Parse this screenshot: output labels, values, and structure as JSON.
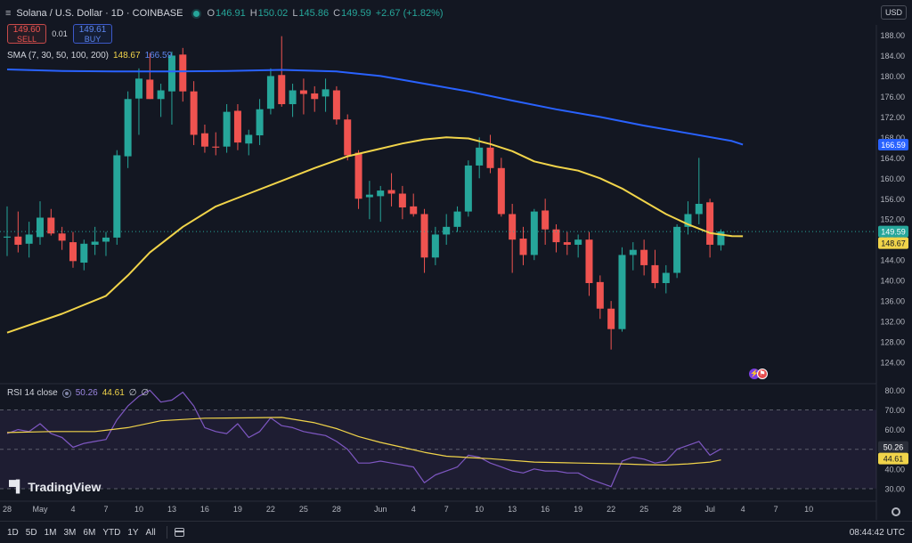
{
  "header": {
    "menu_icon": "hamburger-icon",
    "symbol": "Solana / U.S. Dollar · 1D · COINBASE",
    "status_color": "#26a69a",
    "o_label": "O",
    "o_value": "146.91",
    "h_label": "H",
    "h_value": "150.02",
    "l_label": "L",
    "l_value": "145.86",
    "c_label": "C",
    "c_value": "149.59",
    "change": "+2.67 (+1.82%)"
  },
  "trade": {
    "sell_price": "149.60",
    "sell_label": "SELL",
    "spread": "0.01",
    "buy_price": "149.61",
    "buy_label": "BUY"
  },
  "currency": "USD",
  "sma_legend": {
    "label": "SMA (7, 30, 50, 100, 200)",
    "value1": "148.67",
    "value2": "166.59"
  },
  "rsi_legend": {
    "label": "RSI 14 close",
    "value1": "50.26",
    "value2": "44.61",
    "extra1": "∅",
    "extra2": "∅"
  },
  "logo_text": "TradingView",
  "bottom": {
    "ranges": [
      "1D",
      "5D",
      "1M",
      "3M",
      "6M",
      "YTD",
      "1Y",
      "All"
    ],
    "clock": "08:44:42 UTC"
  },
  "colors": {
    "up": "#26a69a",
    "down": "#ef5350",
    "sma_fast": "#f1d44a",
    "sma_slow": "#2962ff",
    "rsi": "#7e57c2",
    "rsi_ma": "#f1d44a"
  },
  "chart_data": {
    "type": "candlestick",
    "price_axis": {
      "ylim": [
        120,
        190
      ],
      "ticks": [
        124,
        128,
        132,
        136,
        140,
        144,
        148,
        152,
        156,
        160,
        164,
        168,
        172,
        176,
        180,
        184,
        188
      ]
    },
    "current_price": "149.59",
    "sma_fast_last": "148.67",
    "sma_slow_last": "166.59",
    "x_tick_labels": [
      {
        "i": 0,
        "label": "28"
      },
      {
        "i": 3,
        "label": "May"
      },
      {
        "i": 6,
        "label": "4"
      },
      {
        "i": 9,
        "label": "7"
      },
      {
        "i": 12,
        "label": "10"
      },
      {
        "i": 15,
        "label": "13"
      },
      {
        "i": 18,
        "label": "16"
      },
      {
        "i": 21,
        "label": "19"
      },
      {
        "i": 24,
        "label": "22"
      },
      {
        "i": 27,
        "label": "25"
      },
      {
        "i": 30,
        "label": "28"
      },
      {
        "i": 34,
        "label": "Jun"
      },
      {
        "i": 37,
        "label": "4"
      },
      {
        "i": 40,
        "label": "7"
      },
      {
        "i": 43,
        "label": "10"
      },
      {
        "i": 46,
        "label": "13"
      },
      {
        "i": 49,
        "label": "16"
      },
      {
        "i": 52,
        "label": "19"
      },
      {
        "i": 55,
        "label": "22"
      },
      {
        "i": 58,
        "label": "25"
      },
      {
        "i": 61,
        "label": "28"
      },
      {
        "i": 64,
        "label": "Jul"
      },
      {
        "i": 67,
        "label": "4"
      },
      {
        "i": 70,
        "label": "7"
      },
      {
        "i": 73,
        "label": "10"
      }
    ],
    "candles": [
      {
        "o": 148.4,
        "h": 154.5,
        "l": 144.8,
        "c": 148.6
      },
      {
        "o": 148.6,
        "h": 153.5,
        "l": 145.5,
        "c": 147.0
      },
      {
        "o": 147.2,
        "h": 151.5,
        "l": 144.5,
        "c": 149.0
      },
      {
        "o": 148.5,
        "h": 155.5,
        "l": 147.0,
        "c": 152.3
      },
      {
        "o": 152.3,
        "h": 154.0,
        "l": 148.8,
        "c": 149.2
      },
      {
        "o": 149.2,
        "h": 150.5,
        "l": 146.0,
        "c": 147.8
      },
      {
        "o": 147.5,
        "h": 149.5,
        "l": 142.5,
        "c": 143.8
      },
      {
        "o": 143.5,
        "h": 148.0,
        "l": 142.0,
        "c": 147.2
      },
      {
        "o": 147.0,
        "h": 150.5,
        "l": 145.0,
        "c": 147.6
      },
      {
        "o": 147.6,
        "h": 149.5,
        "l": 144.8,
        "c": 148.4
      },
      {
        "o": 148.4,
        "h": 165.5,
        "l": 147.0,
        "c": 164.5
      },
      {
        "o": 164.3,
        "h": 177.0,
        "l": 162.0,
        "c": 175.5
      },
      {
        "o": 175.6,
        "h": 181.5,
        "l": 168.5,
        "c": 179.5
      },
      {
        "o": 179.3,
        "h": 184.5,
        "l": 175.5,
        "c": 175.5
      },
      {
        "o": 175.5,
        "h": 178.5,
        "l": 172.0,
        "c": 177.2
      },
      {
        "o": 177.0,
        "h": 184.8,
        "l": 170.5,
        "c": 184.0
      },
      {
        "o": 184.2,
        "h": 185.5,
        "l": 175.0,
        "c": 177.0
      },
      {
        "o": 177.0,
        "h": 179.0,
        "l": 166.5,
        "c": 168.5
      },
      {
        "o": 168.8,
        "h": 170.5,
        "l": 165.0,
        "c": 166.2
      },
      {
        "o": 166.2,
        "h": 169.0,
        "l": 164.5,
        "c": 166.0
      },
      {
        "o": 166.2,
        "h": 174.5,
        "l": 165.0,
        "c": 173.0
      },
      {
        "o": 173.2,
        "h": 174.5,
        "l": 165.5,
        "c": 167.0
      },
      {
        "o": 166.8,
        "h": 169.5,
        "l": 164.5,
        "c": 168.5
      },
      {
        "o": 168.4,
        "h": 175.5,
        "l": 166.5,
        "c": 173.5
      },
      {
        "o": 173.6,
        "h": 181.5,
        "l": 172.5,
        "c": 180.0
      },
      {
        "o": 180.2,
        "h": 187.8,
        "l": 174.0,
        "c": 174.5
      },
      {
        "o": 174.5,
        "h": 178.5,
        "l": 172.0,
        "c": 177.2
      },
      {
        "o": 177.2,
        "h": 179.5,
        "l": 172.5,
        "c": 176.5
      },
      {
        "o": 176.6,
        "h": 178.0,
        "l": 173.0,
        "c": 175.5
      },
      {
        "o": 176.0,
        "h": 179.5,
        "l": 173.0,
        "c": 177.4
      },
      {
        "o": 177.2,
        "h": 178.0,
        "l": 170.5,
        "c": 171.5
      },
      {
        "o": 171.5,
        "h": 172.5,
        "l": 163.5,
        "c": 164.5
      },
      {
        "o": 165.0,
        "h": 165.5,
        "l": 154.0,
        "c": 156.0
      },
      {
        "o": 156.3,
        "h": 159.5,
        "l": 152.0,
        "c": 156.8
      },
      {
        "o": 156.5,
        "h": 158.5,
        "l": 151.5,
        "c": 157.6
      },
      {
        "o": 157.7,
        "h": 161.0,
        "l": 154.5,
        "c": 157.0
      },
      {
        "o": 157.0,
        "h": 158.5,
        "l": 152.0,
        "c": 154.3
      },
      {
        "o": 154.5,
        "h": 157.0,
        "l": 152.5,
        "c": 153.0
      },
      {
        "o": 153.0,
        "h": 154.0,
        "l": 141.5,
        "c": 144.5
      },
      {
        "o": 144.5,
        "h": 150.5,
        "l": 143.0,
        "c": 149.0
      },
      {
        "o": 149.0,
        "h": 153.0,
        "l": 147.0,
        "c": 150.5
      },
      {
        "o": 150.5,
        "h": 154.5,
        "l": 149.5,
        "c": 153.5
      },
      {
        "o": 153.5,
        "h": 163.5,
        "l": 152.5,
        "c": 162.5
      },
      {
        "o": 162.5,
        "h": 168.0,
        "l": 160.0,
        "c": 166.0
      },
      {
        "o": 166.0,
        "h": 168.5,
        "l": 161.0,
        "c": 162.0
      },
      {
        "o": 162.0,
        "h": 164.0,
        "l": 152.5,
        "c": 153.0
      },
      {
        "o": 153.0,
        "h": 155.0,
        "l": 141.5,
        "c": 148.0
      },
      {
        "o": 148.2,
        "h": 150.5,
        "l": 143.0,
        "c": 145.0
      },
      {
        "o": 145.0,
        "h": 154.0,
        "l": 144.0,
        "c": 153.5
      },
      {
        "o": 153.7,
        "h": 156.0,
        "l": 147.0,
        "c": 150.0
      },
      {
        "o": 150.0,
        "h": 151.0,
        "l": 145.5,
        "c": 147.5
      },
      {
        "o": 147.5,
        "h": 149.5,
        "l": 145.0,
        "c": 147.0
      },
      {
        "o": 147.0,
        "h": 149.0,
        "l": 144.5,
        "c": 148.0
      },
      {
        "o": 148.0,
        "h": 149.5,
        "l": 137.0,
        "c": 139.5
      },
      {
        "o": 139.7,
        "h": 141.0,
        "l": 132.5,
        "c": 134.5
      },
      {
        "o": 134.5,
        "h": 136.0,
        "l": 126.5,
        "c": 130.5
      },
      {
        "o": 130.5,
        "h": 146.5,
        "l": 130.0,
        "c": 145.0
      },
      {
        "o": 145.0,
        "h": 147.5,
        "l": 142.0,
        "c": 146.0
      },
      {
        "o": 146.0,
        "h": 148.0,
        "l": 141.0,
        "c": 143.0
      },
      {
        "o": 143.0,
        "h": 146.0,
        "l": 138.5,
        "c": 139.5
      },
      {
        "o": 139.5,
        "h": 143.0,
        "l": 137.5,
        "c": 141.5
      },
      {
        "o": 141.5,
        "h": 151.0,
        "l": 140.5,
        "c": 150.5
      },
      {
        "o": 150.5,
        "h": 155.5,
        "l": 149.0,
        "c": 153.0
      },
      {
        "o": 153.0,
        "h": 164.0,
        "l": 151.0,
        "c": 155.0
      },
      {
        "o": 155.3,
        "h": 156.0,
        "l": 144.5,
        "c": 147.0
      },
      {
        "o": 146.91,
        "h": 150.02,
        "l": 145.86,
        "c": 149.59
      }
    ],
    "sma_fast": [
      [
        0,
        129.8
      ],
      [
        5,
        133.5
      ],
      [
        9,
        137.0
      ],
      [
        11,
        141.0
      ],
      [
        13,
        145.5
      ],
      [
        16,
        150.5
      ],
      [
        19,
        154.5
      ],
      [
        22,
        157.0
      ],
      [
        25,
        159.5
      ],
      [
        28,
        162.0
      ],
      [
        31,
        164.3
      ],
      [
        34,
        165.8
      ],
      [
        36,
        166.8
      ],
      [
        38,
        167.6
      ],
      [
        40,
        168.0
      ],
      [
        42,
        167.8
      ],
      [
        44,
        166.7
      ],
      [
        46,
        165.3
      ],
      [
        48,
        163.3
      ],
      [
        50,
        162.3
      ],
      [
        52,
        161.5
      ],
      [
        54,
        160.0
      ],
      [
        56,
        158.0
      ],
      [
        58,
        155.5
      ],
      [
        60,
        153.0
      ],
      [
        62,
        151.0
      ],
      [
        64,
        149.3
      ],
      [
        66,
        148.7
      ],
      [
        67,
        148.67
      ]
    ],
    "sma_slow": [
      [
        0,
        181.3
      ],
      [
        5,
        181.0
      ],
      [
        10,
        180.9
      ],
      [
        15,
        180.9
      ],
      [
        20,
        181.0
      ],
      [
        25,
        181.2
      ],
      [
        30,
        180.9
      ],
      [
        34,
        180.0
      ],
      [
        38,
        178.5
      ],
      [
        42,
        177.0
      ],
      [
        46,
        175.2
      ],
      [
        50,
        173.5
      ],
      [
        54,
        172.0
      ],
      [
        58,
        170.3
      ],
      [
        62,
        168.8
      ],
      [
        66,
        167.3
      ],
      [
        67,
        166.59
      ]
    ],
    "rsi_axis": {
      "ylim": [
        25,
        82
      ],
      "ticks": [
        30,
        40,
        50,
        60,
        70,
        80
      ],
      "upper_band": 70,
      "mid_band": 50,
      "lower_band": 30,
      "current": "50.26",
      "ma_current": "44.61"
    },
    "rsi": [
      58,
      60,
      59,
      63,
      58,
      56,
      51,
      53,
      54,
      55,
      65,
      72,
      77,
      80,
      74,
      75,
      79,
      72,
      61,
      59,
      58,
      63,
      56,
      59,
      66,
      62,
      61,
      59,
      58,
      57,
      54,
      50,
      43,
      43,
      44,
      43,
      42,
      41,
      33,
      37,
      39,
      41,
      47,
      46,
      43,
      41,
      39,
      38,
      40,
      39,
      39,
      38,
      38,
      35,
      33,
      31,
      44,
      46,
      45,
      43,
      44,
      50,
      52,
      54,
      47,
      50.26
    ],
    "rsi_ma": [
      [
        0,
        58.5
      ],
      [
        4,
        59.0
      ],
      [
        8,
        59.0
      ],
      [
        11,
        61.0
      ],
      [
        14,
        64.5
      ],
      [
        18,
        65.8
      ],
      [
        22,
        66.0
      ],
      [
        25,
        66.2
      ],
      [
        28,
        63.5
      ],
      [
        30,
        60.5
      ],
      [
        32,
        56.5
      ],
      [
        34,
        53.5
      ],
      [
        36,
        51.0
      ],
      [
        38,
        48.5
      ],
      [
        40,
        46.5
      ],
      [
        42,
        45.8
      ],
      [
        44,
        45.2
      ],
      [
        48,
        43.5
      ],
      [
        52,
        43.0
      ],
      [
        56,
        42.6
      ],
      [
        58,
        42.2
      ],
      [
        60,
        42.0
      ],
      [
        62,
        42.6
      ],
      [
        64,
        43.5
      ],
      [
        65,
        44.61
      ]
    ]
  }
}
